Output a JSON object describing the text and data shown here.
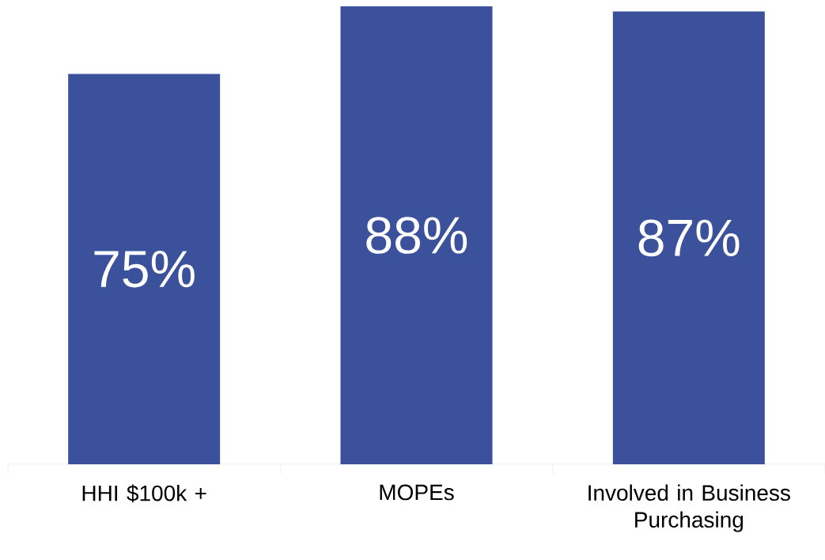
{
  "chart_data": {
    "type": "bar",
    "categories": [
      "HHI $100k +",
      "MOPEs",
      "Involved in Business Purchasing"
    ],
    "values": [
      75,
      88,
      87
    ],
    "value_labels": [
      "75%",
      "88%",
      "87%"
    ],
    "color": "#3b519b",
    "ylim": [
      0,
      88
    ]
  }
}
